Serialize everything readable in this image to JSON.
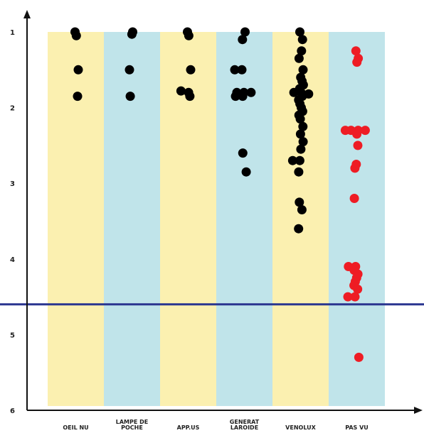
{
  "chart_data": {
    "type": "scatter",
    "title": "",
    "xlabel": "",
    "ylabel": "",
    "categories": [
      "OEIL NU",
      "LAMPE DE POCHE",
      "APP.US",
      "GENERAT LAROIDE",
      "VENOLUX",
      "PAS VU"
    ],
    "band_colors": [
      "#fbf0b0",
      "#c0e4ea",
      "#fbf0b0",
      "#c0e4ea",
      "#fbf0b0",
      "#c0e4ea"
    ],
    "y_ticks": [
      "1",
      "2",
      "3",
      "4",
      "5",
      "6"
    ],
    "ylim": [
      6,
      1
    ],
    "y_inverted": true,
    "reference_line": {
      "y": 4.6,
      "color": "#2a3590"
    },
    "series": [
      {
        "color": "#000000",
        "points": [
          {
            "x": "OEIL NU",
            "y": 1.0
          },
          {
            "x": "OEIL NU",
            "y": 1.05
          },
          {
            "x": "OEIL NU",
            "y": 1.5
          },
          {
            "x": "OEIL NU",
            "y": 1.85
          },
          {
            "x": "LAMPE DE POCHE",
            "y": 1.0
          },
          {
            "x": "LAMPE DE POCHE",
            "y": 1.03
          },
          {
            "x": "LAMPE DE POCHE",
            "y": 1.5
          },
          {
            "x": "LAMPE DE POCHE",
            "y": 1.85
          },
          {
            "x": "APP.US",
            "y": 1.0
          },
          {
            "x": "APP.US",
            "y": 1.05
          },
          {
            "x": "APP.US",
            "y": 1.5
          },
          {
            "x": "APP.US",
            "y": 1.8
          },
          {
            "x": "APP.US",
            "y": 1.78
          },
          {
            "x": "APP.US",
            "y": 1.85
          },
          {
            "x": "GENERAT LAROIDE",
            "y": 1.0
          },
          {
            "x": "GENERAT LAROIDE",
            "y": 1.1
          },
          {
            "x": "GENERAT LAROIDE",
            "y": 1.5
          },
          {
            "x": "GENERAT LAROIDE",
            "y": 1.5
          },
          {
            "x": "GENERAT LAROIDE",
            "y": 1.8
          },
          {
            "x": "GENERAT LAROIDE",
            "y": 1.8
          },
          {
            "x": "GENERAT LAROIDE",
            "y": 1.8
          },
          {
            "x": "GENERAT LAROIDE",
            "y": 1.85
          },
          {
            "x": "GENERAT LAROIDE",
            "y": 1.85
          },
          {
            "x": "GENERAT LAROIDE",
            "y": 2.6
          },
          {
            "x": "GENERAT LAROIDE",
            "y": 2.85
          },
          {
            "x": "VENOLUX",
            "y": 1.0
          },
          {
            "x": "VENOLUX",
            "y": 1.1
          },
          {
            "x": "VENOLUX",
            "y": 1.25
          },
          {
            "x": "VENOLUX",
            "y": 1.35
          },
          {
            "x": "VENOLUX",
            "y": 1.5
          },
          {
            "x": "VENOLUX",
            "y": 1.6
          },
          {
            "x": "VENOLUX",
            "y": 1.65
          },
          {
            "x": "VENOLUX",
            "y": 1.7
          },
          {
            "x": "VENOLUX",
            "y": 1.75
          },
          {
            "x": "VENOLUX",
            "y": 1.8
          },
          {
            "x": "VENOLUX",
            "y": 1.8
          },
          {
            "x": "VENOLUX",
            "y": 1.82
          },
          {
            "x": "VENOLUX",
            "y": 1.85
          },
          {
            "x": "VENOLUX",
            "y": 1.9
          },
          {
            "x": "VENOLUX",
            "y": 1.95
          },
          {
            "x": "VENOLUX",
            "y": 2.0
          },
          {
            "x": "VENOLUX",
            "y": 2.05
          },
          {
            "x": "VENOLUX",
            "y": 2.1
          },
          {
            "x": "VENOLUX",
            "y": 2.15
          },
          {
            "x": "VENOLUX",
            "y": 2.25
          },
          {
            "x": "VENOLUX",
            "y": 2.35
          },
          {
            "x": "VENOLUX",
            "y": 2.45
          },
          {
            "x": "VENOLUX",
            "y": 2.55
          },
          {
            "x": "VENOLUX",
            "y": 2.7
          },
          {
            "x": "VENOLUX",
            "y": 2.7
          },
          {
            "x": "VENOLUX",
            "y": 2.85
          },
          {
            "x": "VENOLUX",
            "y": 3.25
          },
          {
            "x": "VENOLUX",
            "y": 3.35
          },
          {
            "x": "VENOLUX",
            "y": 3.6
          }
        ]
      },
      {
        "color": "#ee1c24",
        "points": [
          {
            "x": "PAS VU",
            "y": 1.25
          },
          {
            "x": "PAS VU",
            "y": 1.35
          },
          {
            "x": "PAS VU",
            "y": 1.4
          },
          {
            "x": "PAS VU",
            "y": 2.3
          },
          {
            "x": "PAS VU",
            "y": 2.3
          },
          {
            "x": "PAS VU",
            "y": 2.3
          },
          {
            "x": "PAS VU",
            "y": 2.3
          },
          {
            "x": "PAS VU",
            "y": 2.35
          },
          {
            "x": "PAS VU",
            "y": 2.5
          },
          {
            "x": "PAS VU",
            "y": 2.75
          },
          {
            "x": "PAS VU",
            "y": 2.8
          },
          {
            "x": "PAS VU",
            "y": 3.2
          },
          {
            "x": "PAS VU",
            "y": 4.1
          },
          {
            "x": "PAS VU",
            "y": 4.1
          },
          {
            "x": "PAS VU",
            "y": 4.15
          },
          {
            "x": "PAS VU",
            "y": 4.2
          },
          {
            "x": "PAS VU",
            "y": 4.25
          },
          {
            "x": "PAS VU",
            "y": 4.3
          },
          {
            "x": "PAS VU",
            "y": 4.35
          },
          {
            "x": "PAS VU",
            "y": 4.4
          },
          {
            "x": "PAS VU",
            "y": 4.5
          },
          {
            "x": "PAS VU",
            "y": 4.5
          },
          {
            "x": "PAS VU",
            "y": 5.3
          }
        ]
      }
    ]
  }
}
